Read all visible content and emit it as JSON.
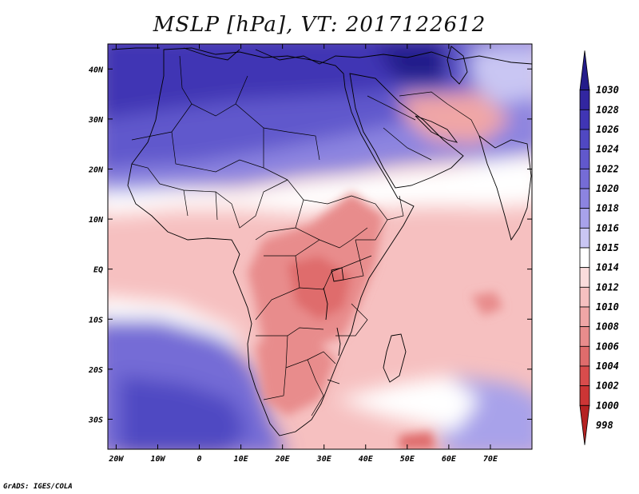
{
  "title": "MSLP [hPa], VT: 2017122612",
  "credit": "GrADS: IGES/COLA",
  "x_axis": {
    "ticks": [
      {
        "lon": -20,
        "label": "20W"
      },
      {
        "lon": -10,
        "label": "10W"
      },
      {
        "lon": 0,
        "label": "0"
      },
      {
        "lon": 10,
        "label": "10E"
      },
      {
        "lon": 20,
        "label": "20E"
      },
      {
        "lon": 30,
        "label": "30E"
      },
      {
        "lon": 40,
        "label": "40E"
      },
      {
        "lon": 50,
        "label": "50E"
      },
      {
        "lon": 60,
        "label": "60E"
      },
      {
        "lon": 70,
        "label": "70E"
      }
    ]
  },
  "y_axis": {
    "ticks": [
      {
        "lat": 40,
        "label": "40N"
      },
      {
        "lat": 30,
        "label": "30N"
      },
      {
        "lat": 20,
        "label": "20N"
      },
      {
        "lat": 10,
        "label": "10N"
      },
      {
        "lat": 0,
        "label": "EQ"
      },
      {
        "lat": -10,
        "label": "10S"
      },
      {
        "lat": -20,
        "label": "20S"
      },
      {
        "lat": -30,
        "label": "30S"
      }
    ]
  },
  "extent": {
    "lon_min": -22,
    "lon_max": 80,
    "lat_min": -36,
    "lat_max": 45
  },
  "colorbar": {
    "levels": [
      {
        "label": "1030",
        "color": "#241c8a"
      },
      {
        "label": "1028",
        "color": "#3226a0"
      },
      {
        "label": "1026",
        "color": "#4035b4"
      },
      {
        "label": "1024",
        "color": "#5048c2"
      },
      {
        "label": "1022",
        "color": "#6158cc"
      },
      {
        "label": "1020",
        "color": "#756cd6"
      },
      {
        "label": "1018",
        "color": "#8c84e0"
      },
      {
        "label": "1016",
        "color": "#a8a2ea"
      },
      {
        "label": "1015",
        "color": "#c9c6f3"
      },
      {
        "label": "1014",
        "color": "#ffffff"
      },
      {
        "label": "1012",
        "color": "#fbdcdc"
      },
      {
        "label": "1010",
        "color": "#f6c0c0"
      },
      {
        "label": "1008",
        "color": "#f0a6a6"
      },
      {
        "label": "1006",
        "color": "#e88c8c"
      },
      {
        "label": "1004",
        "color": "#df6c6c"
      },
      {
        "label": "1002",
        "color": "#d84c4c"
      },
      {
        "label": "1000",
        "color": "#cc3535"
      },
      {
        "label": "998",
        "color": "#b52222"
      }
    ]
  },
  "field_regions": [
    {
      "name": "subtropical-high",
      "value": 1028,
      "color": "#3226a0"
    },
    {
      "name": "north-africa-high",
      "value": 1022,
      "color": "#6158cc"
    },
    {
      "name": "sahel",
      "value": 1014,
      "color": "#ffffff"
    },
    {
      "name": "tropical-low",
      "value": 1008,
      "color": "#f0a6a6"
    },
    {
      "name": "central-africa-low",
      "value": 1006,
      "color": "#e88c8c"
    },
    {
      "name": "east-african-rift-low",
      "value": 1004,
      "color": "#df6c6c"
    },
    {
      "name": "south-atlantic-high",
      "value": 1020,
      "color": "#756cd6"
    },
    {
      "name": "indian-ocean",
      "value": 1010,
      "color": "#f6c0c0"
    },
    {
      "name": "arabian-high",
      "value": 1018,
      "color": "#8c84e0"
    }
  ]
}
